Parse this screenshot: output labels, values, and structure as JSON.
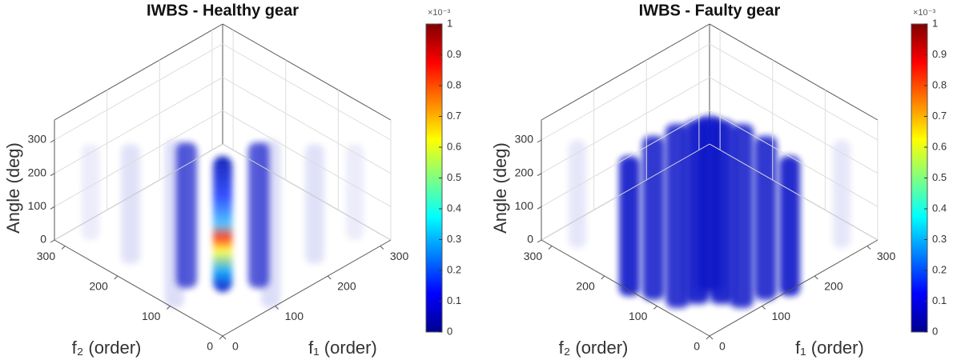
{
  "chart_data": [
    {
      "type": "volume3d",
      "title": "IWBS - Healthy gear",
      "xlabel": "f₁ (order)",
      "ylabel": "f₂ (order)",
      "zlabel": "Angle (deg)",
      "xlim": [
        0,
        320
      ],
      "ylim": [
        0,
        320
      ],
      "zlim": [
        0,
        360
      ],
      "xticks": [
        0,
        100,
        200,
        300
      ],
      "yticks": [
        0,
        100,
        200,
        300
      ],
      "zticks": [
        0,
        100,
        200,
        300
      ],
      "grid": true,
      "colorbar": {
        "colormap": "jet",
        "lim": [
          0,
          1
        ],
        "ticks": [
          0,
          0.1,
          0.2,
          0.3,
          0.4,
          0.5,
          0.6,
          0.7,
          0.8,
          0.9,
          1
        ],
        "exponent_label": "×10⁻³"
      }
    },
    {
      "type": "volume3d",
      "title": "IWBS - Faulty gear",
      "xlabel": "f₁ (order)",
      "ylabel": "f₂ (order)",
      "zlabel": "Angle (deg)",
      "xlim": [
        0,
        320
      ],
      "ylim": [
        0,
        320
      ],
      "zlim": [
        0,
        360
      ],
      "xticks": [
        0,
        100,
        200,
        300
      ],
      "yticks": [
        0,
        100,
        200,
        300
      ],
      "zticks": [
        0,
        100,
        200,
        300
      ],
      "grid": true,
      "colorbar": {
        "colormap": "jet",
        "lim": [
          0,
          1
        ],
        "ticks": [
          0,
          0.1,
          0.2,
          0.3,
          0.4,
          0.5,
          0.6,
          0.7,
          0.8,
          0.9,
          1
        ],
        "exponent_label": "×10⁻³"
      }
    }
  ]
}
